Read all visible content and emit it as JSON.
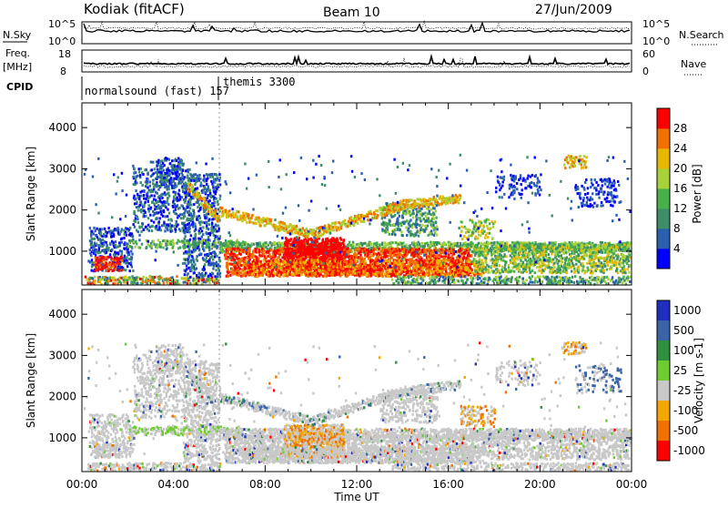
{
  "header": {
    "station": "Kodiak (fitACF)",
    "beam": "Beam 10",
    "date": "27/Jun/2009"
  },
  "top_panels": {
    "nsky_label": "N.Sky",
    "nsky_ticks": [
      "10^5",
      "10^0"
    ],
    "nsearch_label": "N.Search",
    "nsearch_ticks": [
      "10^5",
      "10^0"
    ],
    "freq_label_1": "Freq.",
    "freq_label_2": "[MHz]",
    "freq_ticks": [
      "18",
      "8"
    ],
    "nave_label": "Nave",
    "nave_ticks": [
      "60",
      "0"
    ],
    "cpid_label": "CPID",
    "cpid_programs": [
      "normalsound (fast) 157",
      "themis 3300"
    ]
  },
  "colors": {
    "power": [
      "#0000ff",
      "#2b5fb0",
      "#3f8e6a",
      "#47b04a",
      "#a8d23a",
      "#e8b800",
      "#f07000",
      "#ff0000"
    ],
    "velocity": [
      "#1f2fbf",
      "#3a64a8",
      "#2e9040",
      "#6ccc30",
      "#c8c8c8",
      "#f2a800",
      "#f07000",
      "#ff0000"
    ],
    "ground": "#c8c8c8"
  },
  "chart_data": [
    {
      "type": "heatmap",
      "title": "Power",
      "ylabel": "Slant Range [km]",
      "xlabel": "",
      "y_ticks": [
        "1000",
        "2000",
        "3000",
        "4000"
      ],
      "ylim": [
        180,
        4600
      ],
      "x_ticks": [
        "00:00",
        "04:00",
        "08:00",
        "12:00",
        "16:00",
        "20:00",
        "00:00"
      ],
      "colorbar_label": "Power [dB]",
      "colorbar_ticks": [
        "4",
        "8",
        "12",
        "16",
        "20",
        "24",
        "28"
      ]
    },
    {
      "type": "heatmap",
      "title": "Velocity",
      "ylabel": "Slant Range [km]",
      "xlabel": "Time UT",
      "y_ticks": [
        "1000",
        "2000",
        "3000",
        "4000"
      ],
      "ylim": [
        180,
        4600
      ],
      "x_ticks": [
        "00:00",
        "04:00",
        "08:00",
        "12:00",
        "16:00",
        "20:00",
        "00:00"
      ],
      "colorbar_label": "Velocity [m s-1]",
      "colorbar_ticks": [
        "1000",
        "500",
        "100",
        "25",
        "-25",
        "-100",
        "-500",
        "-1000"
      ]
    }
  ]
}
